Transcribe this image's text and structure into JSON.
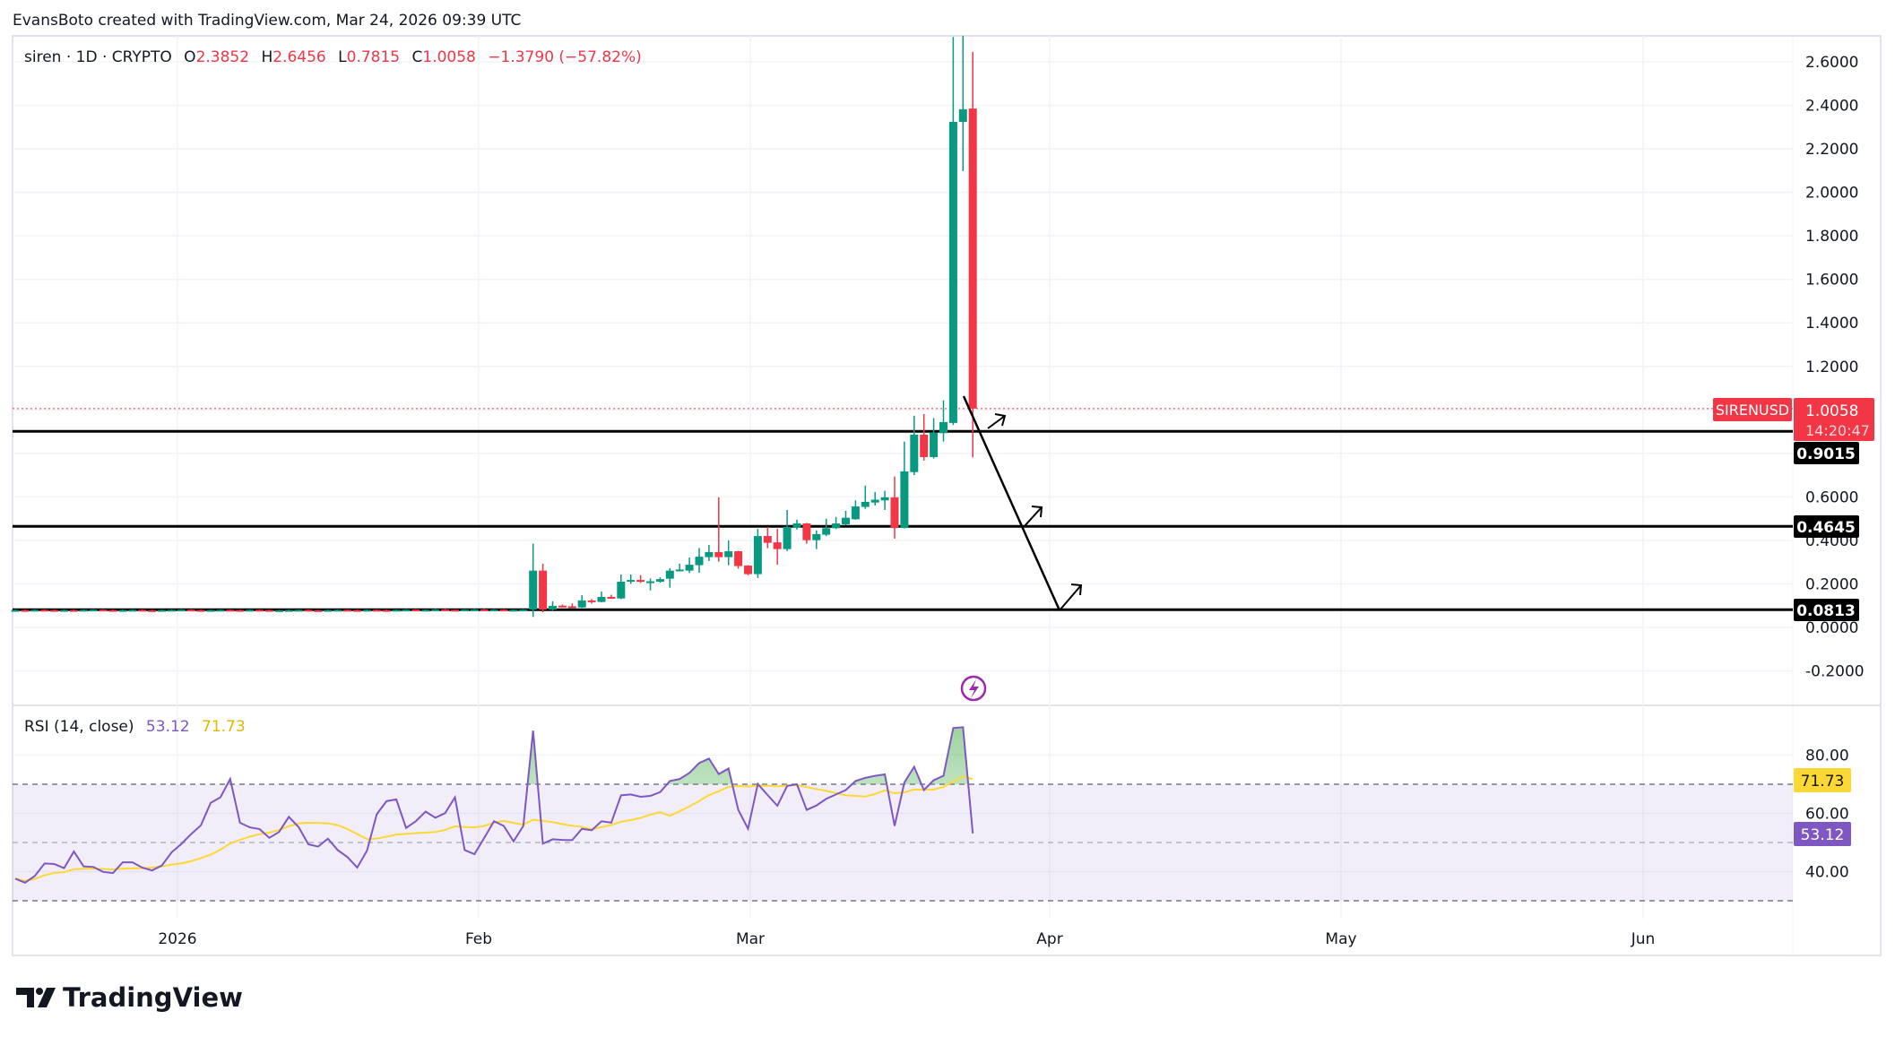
{
  "header": {
    "attribution": "EvansBoto created with TradingView.com, Mar 24, 2026 09:39 UTC"
  },
  "legend": {
    "symbol": "siren · 1D · CRYPTO",
    "o_label": "O",
    "o": "2.3852",
    "h_label": "H",
    "h": "2.6456",
    "l_label": "L",
    "l": "0.7815",
    "c_label": "C",
    "c": "1.0058",
    "change": "−1.3790 (−57.82%)"
  },
  "price_axis": {
    "ticks": [
      "2.6000",
      "2.4000",
      "2.2000",
      "2.0000",
      "1.8000",
      "1.6000",
      "1.4000",
      "1.2000",
      "0.6000",
      "0.4000",
      "0.2000",
      "0.0000",
      "-0.2000"
    ],
    "symbol_tag": "SIRENUSD",
    "last_price": "1.0058",
    "countdown": "14:20:47"
  },
  "levels": [
    {
      "value": 0.9015,
      "label": "0.9015"
    },
    {
      "value": 0.4645,
      "label": "0.4645"
    },
    {
      "value": 0.0813,
      "label": "0.0813"
    }
  ],
  "time_axis": {
    "labels": [
      "2026",
      "Feb",
      "Mar",
      "Apr",
      "May",
      "Jun"
    ]
  },
  "rsi": {
    "title": "RSI (14, close)",
    "value": "53.12",
    "ma_value": "71.73",
    "ticks": [
      "80.00",
      "60.00",
      "40.00"
    ],
    "band": [
      30,
      70
    ],
    "length": 14
  },
  "colors": {
    "up": "#089981",
    "down": "#f23645",
    "rsi": "#7e57c2",
    "rsi_ma": "#fdd835",
    "level": "#000000"
  },
  "logo": {
    "text": "TradingView"
  },
  "chart_data": {
    "type": "candlestick",
    "interval": "1D",
    "ylim": [
      -0.2,
      2.7
    ],
    "pre_closes": [
      0.08,
      0.079,
      0.081,
      0.08,
      0.078,
      0.08,
      0.079,
      0.081,
      0.082,
      0.08,
      0.079,
      0.08,
      0.081,
      0.079,
      0.078,
      0.08,
      0.081,
      0.082,
      0.08,
      0.079,
      0.08,
      0.081,
      0.08,
      0.079,
      0.081,
      0.08,
      0.078,
      0.079,
      0.08,
      0.081,
      0.079,
      0.078,
      0.08,
      0.081,
      0.08,
      0.079,
      0.081,
      0.08,
      0.079,
      0.081,
      0.082,
      0.08,
      0.081,
      0.083,
      0.081,
      0.08,
      0.082,
      0.083,
      0.081,
      0.082,
      0.08,
      0.081,
      0.082
    ],
    "ohlc": [
      [
        0.082,
        0.385,
        0.048,
        0.261
      ],
      [
        0.261,
        0.293,
        0.07,
        0.082
      ],
      [
        0.082,
        0.12,
        0.078,
        0.099
      ],
      [
        0.1,
        0.105,
        0.094,
        0.097
      ],
      [
        0.097,
        0.11,
        0.092,
        0.093
      ],
      [
        0.092,
        0.148,
        0.09,
        0.124
      ],
      [
        0.124,
        0.13,
        0.11,
        0.12
      ],
      [
        0.117,
        0.165,
        0.115,
        0.14
      ],
      [
        0.14,
        0.15,
        0.132,
        0.137
      ],
      [
        0.133,
        0.243,
        0.13,
        0.21
      ],
      [
        0.21,
        0.243,
        0.2,
        0.218
      ],
      [
        0.218,
        0.24,
        0.205,
        0.21
      ],
      [
        0.21,
        0.225,
        0.17,
        0.212
      ],
      [
        0.21,
        0.23,
        0.205,
        0.222
      ],
      [
        0.224,
        0.272,
        0.183,
        0.261
      ],
      [
        0.261,
        0.293,
        0.258,
        0.266
      ],
      [
        0.261,
        0.321,
        0.25,
        0.288
      ],
      [
        0.286,
        0.365,
        0.251,
        0.325
      ],
      [
        0.323,
        0.379,
        0.305,
        0.346
      ],
      [
        0.346,
        0.598,
        0.302,
        0.323
      ],
      [
        0.323,
        0.4,
        0.286,
        0.35
      ],
      [
        0.35,
        0.352,
        0.27,
        0.282
      ],
      [
        0.284,
        0.286,
        0.24,
        0.245
      ],
      [
        0.245,
        0.453,
        0.227,
        0.42
      ],
      [
        0.42,
        0.462,
        0.364,
        0.389
      ],
      [
        0.391,
        0.453,
        0.288,
        0.36
      ],
      [
        0.36,
        0.54,
        0.35,
        0.462
      ],
      [
        0.459,
        0.495,
        0.45,
        0.478
      ],
      [
        0.478,
        0.48,
        0.385,
        0.401
      ],
      [
        0.401,
        0.446,
        0.36,
        0.429
      ],
      [
        0.426,
        0.499,
        0.42,
        0.456
      ],
      [
        0.456,
        0.508,
        0.452,
        0.478
      ],
      [
        0.474,
        0.536,
        0.47,
        0.504
      ],
      [
        0.497,
        0.584,
        0.495,
        0.556
      ],
      [
        0.554,
        0.652,
        0.545,
        0.577
      ],
      [
        0.574,
        0.622,
        0.56,
        0.587
      ],
      [
        0.584,
        0.628,
        0.54,
        0.598
      ],
      [
        0.598,
        0.694,
        0.408,
        0.457
      ],
      [
        0.457,
        0.854,
        0.455,
        0.717
      ],
      [
        0.714,
        0.973,
        0.7,
        0.886
      ],
      [
        0.886,
        0.981,
        0.767,
        0.783
      ],
      [
        0.783,
        0.962,
        0.776,
        0.896
      ],
      [
        0.893,
        1.044,
        0.854,
        0.944
      ],
      [
        0.94,
        2.715,
        0.93,
        2.324
      ],
      [
        2.324,
        2.72,
        2.098,
        2.382
      ],
      [
        2.3852,
        2.6456,
        0.7815,
        1.0058
      ]
    ],
    "rsi_values": [
      37.6,
      36.2,
      38.5,
      42.8,
      42.6,
      41.2,
      46.9,
      41.8,
      41.6,
      39.9,
      39.5,
      43.2,
      43.2,
      41.4,
      40.4,
      42.1,
      46.6,
      49.5,
      52.9,
      55.9,
      63.6,
      65.5,
      71.8,
      56.8,
      55.2,
      54.6,
      51.6,
      53.6,
      58.8,
      55.3,
      49.4,
      48.6,
      51.3,
      47.4,
      45,
      41.4,
      47.2,
      59.7,
      64.2,
      64.8,
      55,
      57.3,
      60.6,
      58.5,
      60.1,
      65.5,
      47.4,
      46,
      51.6,
      57.3,
      55.7,
      50.4,
      55.7,
      88.4,
      49.6,
      51.1,
      50.9,
      50.8,
      54.7,
      54.2,
      57.3,
      56.8,
      66.2,
      66.5,
      65.7,
      66,
      67.3,
      71.1,
      71.8,
      73.9,
      77.3,
      78.8,
      73.5,
      75.4,
      61.2,
      54.7,
      70.1,
      66.3,
      62.6,
      69.4,
      70,
      61.2,
      62.7,
      65,
      66.5,
      68,
      71.1,
      72.2,
      72.9,
      73.4,
      55.7,
      70.6,
      76,
      68,
      71.4,
      72.9,
      89.3,
      89.6,
      53.12
    ]
  }
}
